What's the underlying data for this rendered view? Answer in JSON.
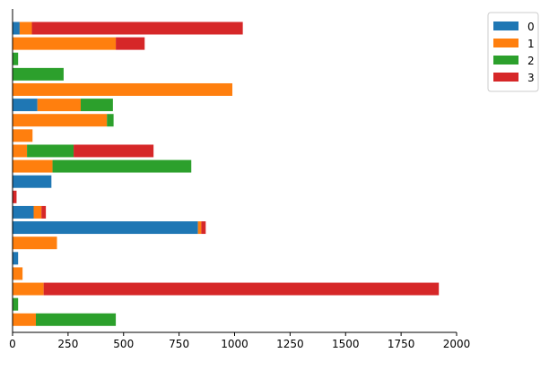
{
  "chart_data": {
    "type": "bar",
    "orientation": "horizontal",
    "stacked": true,
    "xlim": [
      0,
      2000
    ],
    "x_ticks": [
      "0",
      "250",
      "500",
      "750",
      "1000",
      "1250",
      "1500",
      "1750",
      "2000"
    ],
    "x_tick_values": [
      0,
      250,
      500,
      750,
      1000,
      1250,
      1500,
      1750,
      2000
    ],
    "rows": 20,
    "grid": false,
    "legend_position": "top-right",
    "series": [
      {
        "name": "0",
        "color": "#1f77b4",
        "values": [
          32,
          0,
          0,
          0,
          0,
          112,
          0,
          0,
          0,
          0,
          175,
          0,
          95,
          835,
          0,
          25,
          0,
          0,
          0,
          0
        ]
      },
      {
        "name": "1",
        "color": "#ff7f0e",
        "values": [
          55,
          465,
          0,
          0,
          990,
          195,
          425,
          90,
          65,
          180,
          0,
          0,
          35,
          15,
          200,
          0,
          45,
          140,
          0,
          105
        ]
      },
      {
        "name": "2",
        "color": "#2ca02c",
        "values": [
          0,
          0,
          25,
          230,
          0,
          145,
          30,
          0,
          210,
          625,
          0,
          0,
          0,
          0,
          0,
          0,
          0,
          0,
          25,
          360
        ]
      },
      {
        "name": "3",
        "color": "#d62728",
        "values": [
          950,
          130,
          0,
          0,
          0,
          0,
          0,
          0,
          360,
          0,
          0,
          18,
          20,
          20,
          0,
          0,
          0,
          1780,
          0,
          0
        ]
      }
    ]
  }
}
